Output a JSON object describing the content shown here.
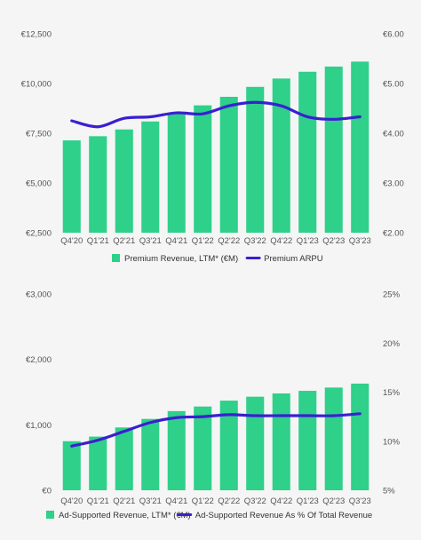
{
  "colors": {
    "bar": "#2ed08a",
    "line": "#3a1fd1",
    "background": "#f4f5f4"
  },
  "chart_data": [
    {
      "type": "bar",
      "categories": [
        "Q4'20",
        "Q1'21",
        "Q2'21",
        "Q3'21",
        "Q4'21",
        "Q1'22",
        "Q2'22",
        "Q3'22",
        "Q4'22",
        "Q1'23",
        "Q2'23",
        "Q3'23"
      ],
      "series": [
        {
          "name": "Premium Revenue, LTM* (€M)",
          "type": "bar",
          "axis": "left",
          "values": [
            7140,
            7350,
            7690,
            8090,
            8520,
            8900,
            9330,
            9830,
            10250,
            10590,
            10850,
            11100
          ]
        },
        {
          "name": "Premium ARPU",
          "type": "line",
          "axis": "right",
          "values": [
            4.25,
            4.13,
            4.3,
            4.33,
            4.41,
            4.39,
            4.55,
            4.62,
            4.55,
            4.33,
            4.28,
            4.33
          ]
        }
      ],
      "left_axis": {
        "ylim": [
          2500,
          12500
        ],
        "ticks": [
          2500,
          5000,
          7500,
          10000,
          12500
        ],
        "tick_labels": [
          "€2,500",
          "€5,000",
          "€7,500",
          "€10,000",
          "€12,500"
        ]
      },
      "right_axis": {
        "ylim": [
          2.0,
          6.0
        ],
        "ticks": [
          2,
          3,
          4,
          5,
          6
        ],
        "tick_labels": [
          "€2.00",
          "€3.00",
          "€4.00",
          "€5.00",
          "€6.00"
        ]
      },
      "grid": false,
      "legend_position": "bottom"
    },
    {
      "type": "bar",
      "categories": [
        "Q4'20",
        "Q1'21",
        "Q2'21",
        "Q3'21",
        "Q4'21",
        "Q1'22",
        "Q2'22",
        "Q3'22",
        "Q4'22",
        "Q1'23",
        "Q2'23",
        "Q3'23"
      ],
      "series": [
        {
          "name": "Ad-Supported Revenue, LTM* (€M)",
          "type": "bar",
          "axis": "left",
          "values": [
            750,
            820,
            960,
            1090,
            1210,
            1280,
            1370,
            1430,
            1480,
            1520,
            1570,
            1630
          ]
        },
        {
          "name": "Ad-Supported Revenue As % Of Total Revenue",
          "type": "line",
          "axis": "right",
          "values": [
            9.5,
            10.1,
            11.0,
            11.9,
            12.4,
            12.5,
            12.7,
            12.6,
            12.6,
            12.6,
            12.6,
            12.8
          ]
        }
      ],
      "left_axis": {
        "ylim": [
          0,
          3000
        ],
        "ticks": [
          0,
          1000,
          2000,
          3000
        ],
        "tick_labels": [
          "€0",
          "€1,000",
          "€2,000",
          "€3,000"
        ]
      },
      "right_axis": {
        "ylim": [
          5,
          25
        ],
        "ticks": [
          5,
          10,
          15,
          20,
          25
        ],
        "tick_labels": [
          "5%",
          "10%",
          "15%",
          "20%",
          "25%"
        ]
      },
      "grid": false,
      "legend_position": "bottom"
    }
  ]
}
